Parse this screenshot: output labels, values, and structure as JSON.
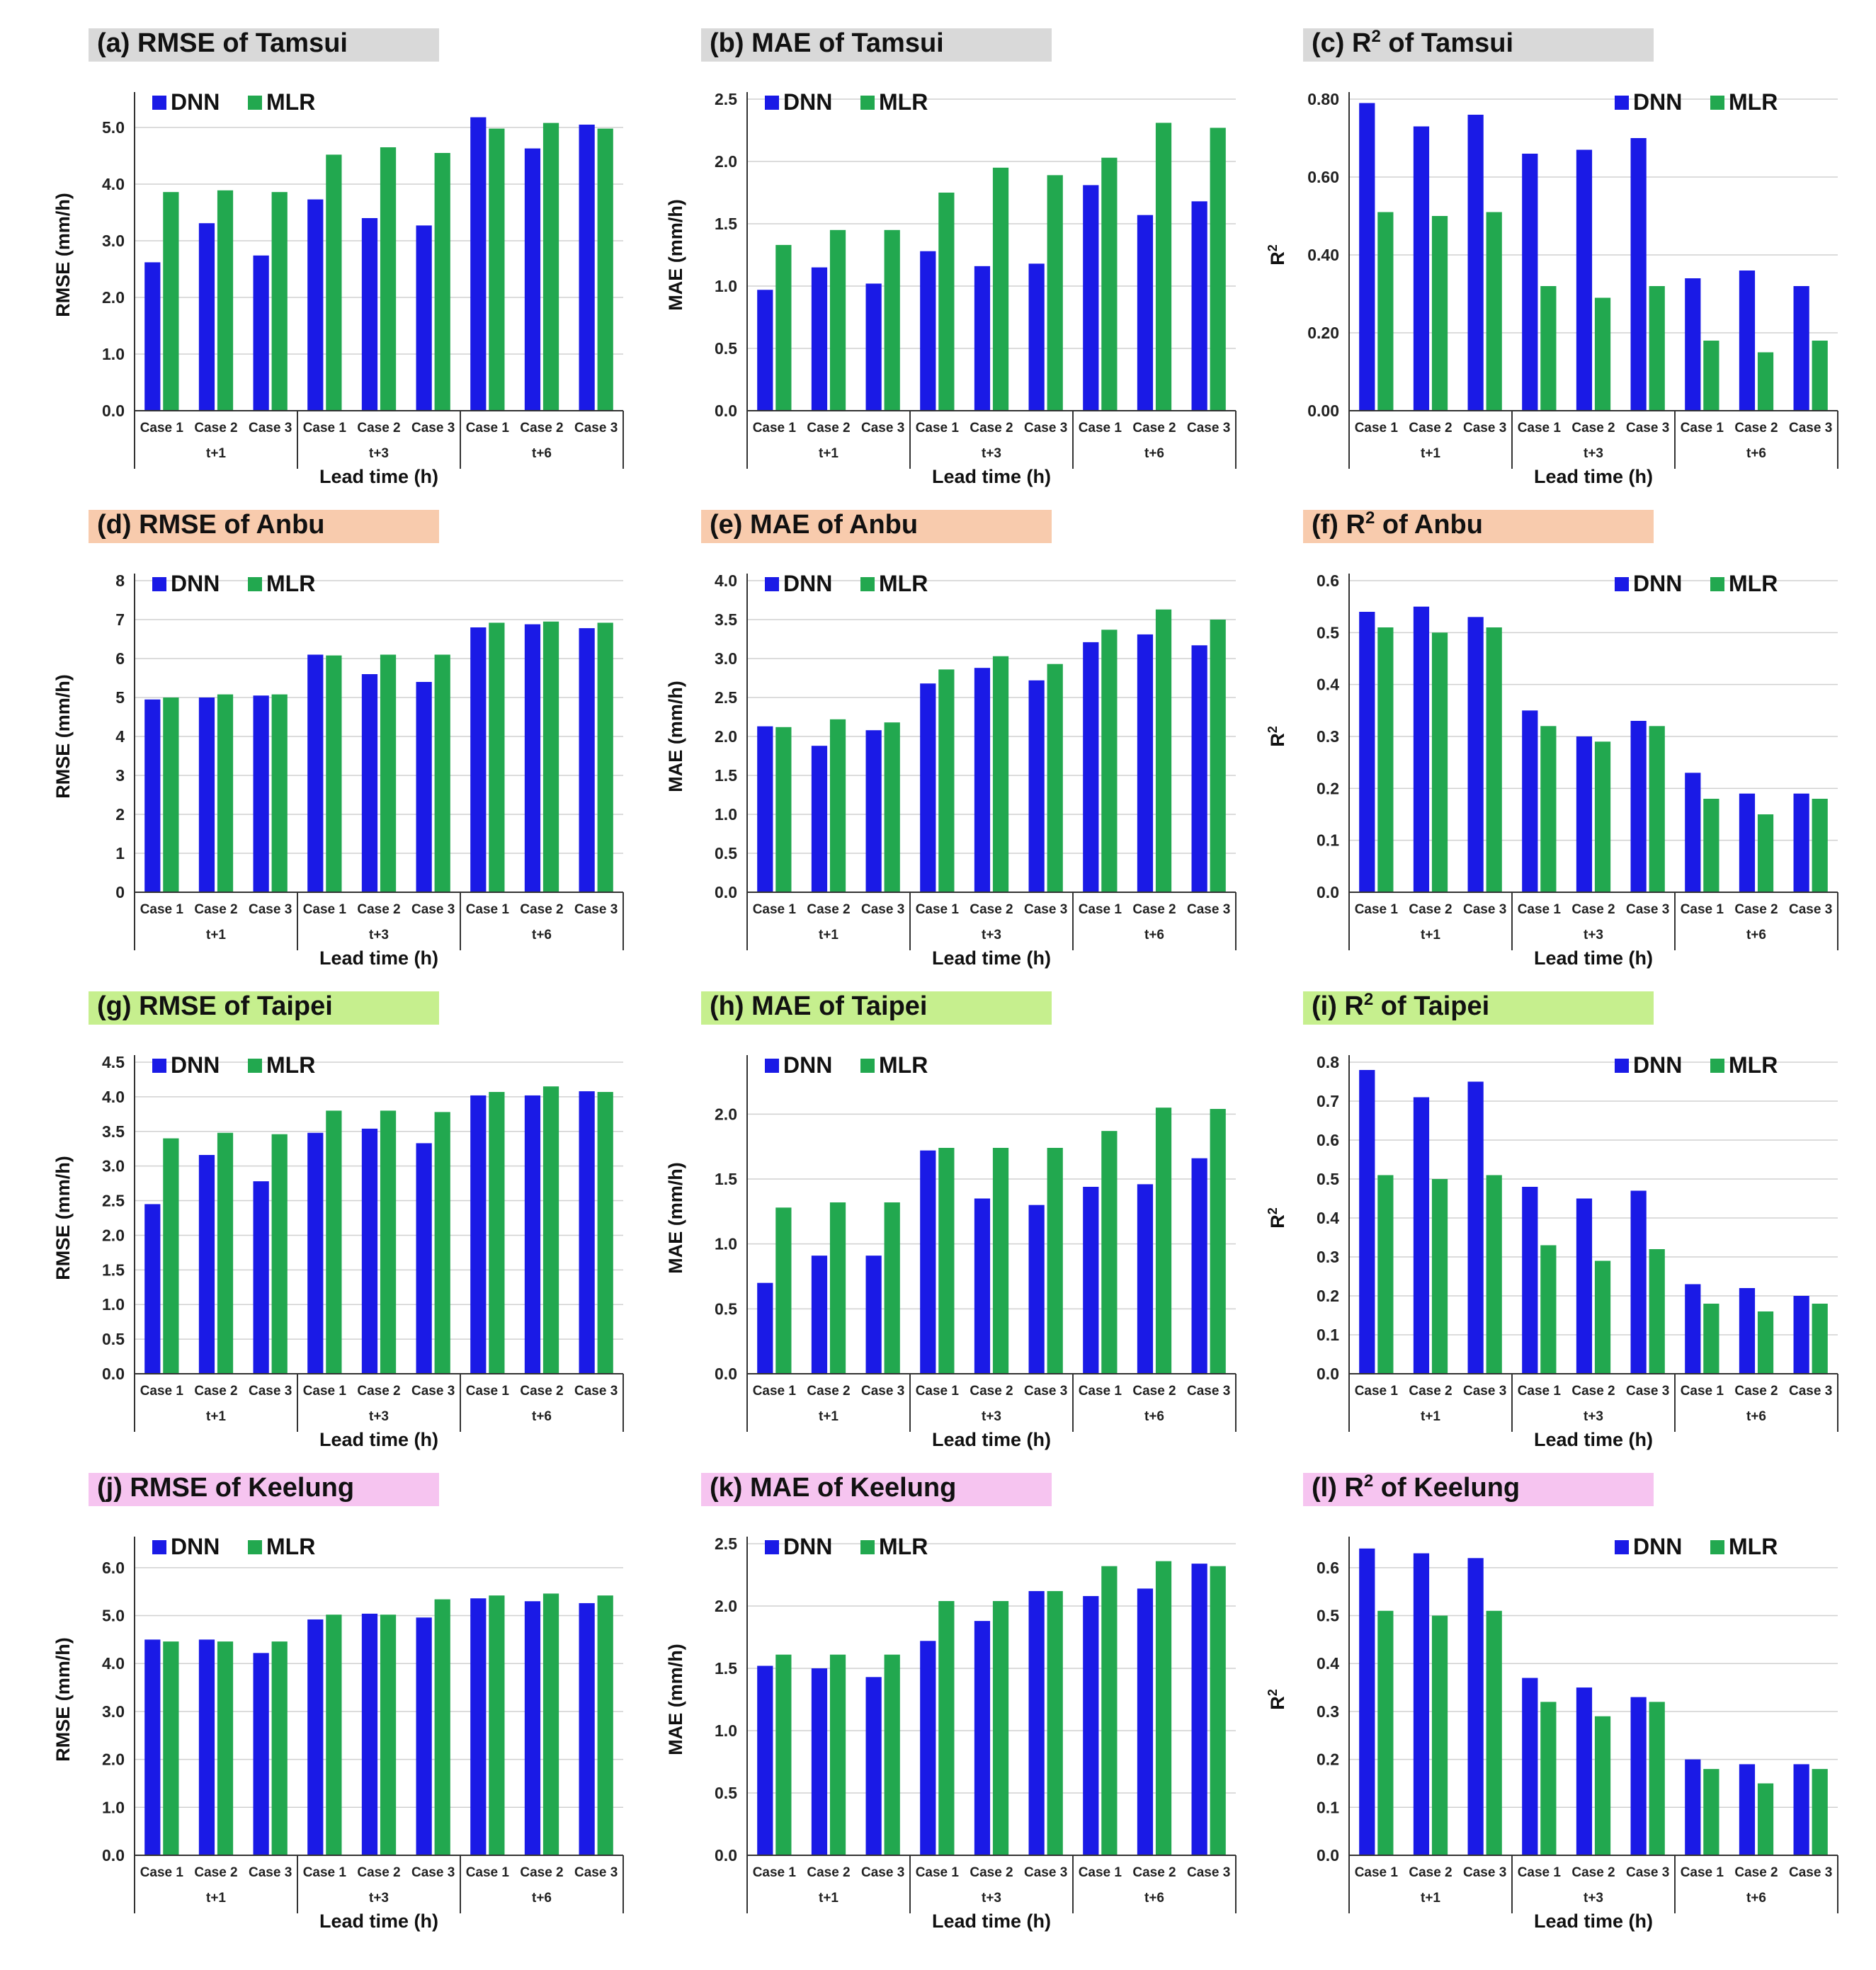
{
  "colors": {
    "dnn": "#1a1ae6",
    "mlr": "#22a84f",
    "tamsui_bg": "#d9d9d9",
    "anbu_bg": "#f8cbad",
    "taipei_bg": "#c6ef8e",
    "keelung_bg": "#f6c4f0",
    "grid": "#d0d0d0",
    "axis": "#333333"
  },
  "chart_data": [
    {
      "id": "a",
      "type": "bar",
      "station": "tamsui",
      "title": "(a) RMSE of Tamsui",
      "ylabel": "RMSE (mm/h)",
      "xlabel": "Lead time (h)",
      "ylim": [
        0,
        5.5
      ],
      "yticks": [
        "0.0",
        "1.0",
        "2.0",
        "3.0",
        "4.0",
        "5.0"
      ],
      "ytick_values": [
        0,
        1,
        2,
        3,
        4,
        5
      ],
      "categories": [
        "Case 1",
        "Case 2",
        "Case 3",
        "Case 1",
        "Case 2",
        "Case 3",
        "Case 1",
        "Case 2",
        "Case 3"
      ],
      "groups": [
        "t+1",
        "t+3",
        "t+6"
      ],
      "legend": "top-left",
      "series": [
        {
          "name": "DNN",
          "values": [
            2.62,
            3.31,
            2.74,
            3.73,
            3.4,
            3.27,
            5.18,
            4.63,
            5.05
          ]
        },
        {
          "name": "MLR",
          "values": [
            3.86,
            3.89,
            3.86,
            4.52,
            4.65,
            4.55,
            4.98,
            5.08,
            4.98
          ]
        }
      ]
    },
    {
      "id": "b",
      "type": "bar",
      "station": "tamsui",
      "title": "(b) MAE of Tamsui",
      "ylabel": "MAE (mm/h)",
      "xlabel": "Lead time (h)",
      "ylim": [
        0,
        2.5
      ],
      "yticks": [
        "0.0",
        "0.5",
        "1.0",
        "1.5",
        "2.0",
        "2.5"
      ],
      "ytick_values": [
        0,
        0.5,
        1,
        1.5,
        2,
        2.5
      ],
      "categories": [
        "Case 1",
        "Case 2",
        "Case 3",
        "Case 1",
        "Case 2",
        "Case 3",
        "Case 1",
        "Case 2",
        "Case 3"
      ],
      "groups": [
        "t+1",
        "t+3",
        "t+6"
      ],
      "legend": "top-left",
      "series": [
        {
          "name": "DNN",
          "values": [
            0.97,
            1.15,
            1.02,
            1.28,
            1.16,
            1.18,
            1.81,
            1.57,
            1.68
          ]
        },
        {
          "name": "MLR",
          "values": [
            1.33,
            1.45,
            1.45,
            1.75,
            1.95,
            1.89,
            2.03,
            2.31,
            2.27
          ]
        }
      ]
    },
    {
      "id": "c",
      "type": "bar",
      "station": "tamsui",
      "title": "(c) R",
      "title_sup": "2",
      "title_rest": " of Tamsui",
      "ylabel": "R",
      "ylabel_sup": "2",
      "xlabel": "Lead time (h)",
      "ylim": [
        0,
        0.8
      ],
      "yticks": [
        "0.00",
        "0.20",
        "0.40",
        "0.60",
        "0.80"
      ],
      "ytick_values": [
        0,
        0.2,
        0.4,
        0.6,
        0.8
      ],
      "categories": [
        "Case 1",
        "Case 2",
        "Case 3",
        "Case 1",
        "Case 2",
        "Case 3",
        "Case 1",
        "Case 2",
        "Case 3"
      ],
      "groups": [
        "t+1",
        "t+3",
        "t+6"
      ],
      "legend": "top-right",
      "series": [
        {
          "name": "DNN",
          "values": [
            0.79,
            0.73,
            0.76,
            0.66,
            0.67,
            0.7,
            0.34,
            0.36,
            0.32
          ]
        },
        {
          "name": "MLR",
          "values": [
            0.51,
            0.5,
            0.51,
            0.32,
            0.29,
            0.32,
            0.18,
            0.15,
            0.18
          ]
        }
      ]
    },
    {
      "id": "d",
      "type": "bar",
      "station": "anbu",
      "title": "(d) RMSE of Anbu",
      "ylabel": "RMSE (mm/h)",
      "xlabel": "Lead time (h)",
      "ylim": [
        0,
        8
      ],
      "yticks": [
        "0",
        "1",
        "2",
        "3",
        "4",
        "5",
        "6",
        "7",
        "8"
      ],
      "ytick_values": [
        0,
        1,
        2,
        3,
        4,
        5,
        6,
        7,
        8
      ],
      "categories": [
        "Case 1",
        "Case 2",
        "Case 3",
        "Case 1",
        "Case 2",
        "Case 3",
        "Case 1",
        "Case 2",
        "Case 3"
      ],
      "groups": [
        "t+1",
        "t+3",
        "t+6"
      ],
      "legend": "top-left",
      "series": [
        {
          "name": "DNN",
          "values": [
            4.95,
            5.0,
            5.05,
            6.1,
            5.6,
            5.4,
            6.8,
            6.88,
            6.78
          ]
        },
        {
          "name": "MLR",
          "values": [
            5.0,
            5.08,
            5.08,
            6.08,
            6.1,
            6.1,
            6.92,
            6.95,
            6.92
          ]
        }
      ]
    },
    {
      "id": "e",
      "type": "bar",
      "station": "anbu",
      "title": "(e) MAE of Anbu",
      "ylabel": "MAE (mm/h)",
      "xlabel": "Lead time (h)",
      "ylim": [
        0,
        4
      ],
      "yticks": [
        "0.0",
        "0.5",
        "1.0",
        "1.5",
        "2.0",
        "2.5",
        "3.0",
        "3.5",
        "4.0"
      ],
      "ytick_values": [
        0,
        0.5,
        1,
        1.5,
        2,
        2.5,
        3,
        3.5,
        4
      ],
      "categories": [
        "Case 1",
        "Case 2",
        "Case 3",
        "Case 1",
        "Case 2",
        "Case 3",
        "Case 1",
        "Case 2",
        "Case 3"
      ],
      "groups": [
        "t+1",
        "t+3",
        "t+6"
      ],
      "legend": "top-left",
      "series": [
        {
          "name": "DNN",
          "values": [
            2.13,
            1.88,
            2.08,
            2.68,
            2.88,
            2.72,
            3.21,
            3.31,
            3.17
          ]
        },
        {
          "name": "MLR",
          "values": [
            2.12,
            2.22,
            2.18,
            2.86,
            3.03,
            2.93,
            3.37,
            3.63,
            3.5
          ]
        }
      ]
    },
    {
      "id": "f",
      "type": "bar",
      "station": "anbu",
      "title": "(f) R",
      "title_sup": "2",
      "title_rest": " of Anbu",
      "ylabel": "R",
      "ylabel_sup": "2",
      "xlabel": "Lead time (h)",
      "ylim": [
        0,
        0.6
      ],
      "yticks": [
        "0.0",
        "0.1",
        "0.2",
        "0.3",
        "0.4",
        "0.5",
        "0.6"
      ],
      "ytick_values": [
        0,
        0.1,
        0.2,
        0.3,
        0.4,
        0.5,
        0.6
      ],
      "categories": [
        "Case 1",
        "Case 2",
        "Case 3",
        "Case 1",
        "Case 2",
        "Case 3",
        "Case 1",
        "Case 2",
        "Case 3"
      ],
      "groups": [
        "t+1",
        "t+3",
        "t+6"
      ],
      "legend": "top-right",
      "series": [
        {
          "name": "DNN",
          "values": [
            0.54,
            0.55,
            0.53,
            0.35,
            0.3,
            0.33,
            0.23,
            0.19,
            0.19
          ]
        },
        {
          "name": "MLR",
          "values": [
            0.51,
            0.5,
            0.51,
            0.32,
            0.29,
            0.32,
            0.18,
            0.15,
            0.18
          ]
        }
      ]
    },
    {
      "id": "g",
      "type": "bar",
      "station": "taipei",
      "title": "(g) RMSE of Taipei",
      "ylabel": "RMSE (mm/h)",
      "xlabel": "Lead time (h)",
      "ylim": [
        0,
        4.5
      ],
      "yticks": [
        "0.0",
        "0.5",
        "1.0",
        "1.5",
        "2.0",
        "2.5",
        "3.0",
        "3.5",
        "4.0",
        "4.5"
      ],
      "ytick_values": [
        0,
        0.5,
        1,
        1.5,
        2,
        2.5,
        3,
        3.5,
        4,
        4.5
      ],
      "categories": [
        "Case 1",
        "Case 2",
        "Case 3",
        "Case 1",
        "Case 2",
        "Case 3",
        "Case 1",
        "Case 2",
        "Case 3"
      ],
      "groups": [
        "t+1",
        "t+3",
        "t+6"
      ],
      "legend": "top-left",
      "series": [
        {
          "name": "DNN",
          "values": [
            2.45,
            3.16,
            2.78,
            3.48,
            3.54,
            3.33,
            4.02,
            4.02,
            4.08
          ]
        },
        {
          "name": "MLR",
          "values": [
            3.4,
            3.48,
            3.46,
            3.8,
            3.8,
            3.78,
            4.07,
            4.15,
            4.07
          ]
        }
      ]
    },
    {
      "id": "h",
      "type": "bar",
      "station": "taipei",
      "title": "(h) MAE of Taipei",
      "ylabel": "MAE (mm/h)",
      "xlabel": "Lead time (h)",
      "ylim": [
        0,
        2.4
      ],
      "yticks": [
        "0.0",
        "0.5",
        "1.0",
        "1.5",
        "2.0"
      ],
      "ytick_values": [
        0,
        0.5,
        1,
        1.5,
        2
      ],
      "categories": [
        "Case 1",
        "Case 2",
        "Case 3",
        "Case 1",
        "Case 2",
        "Case 3",
        "Case 1",
        "Case 2",
        "Case 3"
      ],
      "groups": [
        "t+1",
        "t+3",
        "t+6"
      ],
      "legend": "top-left",
      "series": [
        {
          "name": "DNN",
          "values": [
            0.7,
            0.91,
            0.91,
            1.72,
            1.35,
            1.3,
            1.44,
            1.46,
            1.66
          ]
        },
        {
          "name": "MLR",
          "values": [
            1.28,
            1.32,
            1.32,
            1.74,
            1.74,
            1.74,
            1.87,
            2.05,
            2.04
          ]
        }
      ]
    },
    {
      "id": "i",
      "type": "bar",
      "station": "taipei",
      "title": "(i) R",
      "title_sup": "2",
      "title_rest": " of Taipei",
      "ylabel": "R",
      "ylabel_sup": "2",
      "xlabel": "Lead time (h)",
      "ylim": [
        0,
        0.8
      ],
      "yticks": [
        "0.0",
        "0.1",
        "0.2",
        "0.3",
        "0.4",
        "0.5",
        "0.6",
        "0.7",
        "0.8"
      ],
      "ytick_values": [
        0,
        0.1,
        0.2,
        0.3,
        0.4,
        0.5,
        0.6,
        0.7,
        0.8
      ],
      "categories": [
        "Case 1",
        "Case 2",
        "Case 3",
        "Case 1",
        "Case 2",
        "Case 3",
        "Case 1",
        "Case 2",
        "Case 3"
      ],
      "groups": [
        "t+1",
        "t+3",
        "t+6"
      ],
      "legend": "top-right",
      "series": [
        {
          "name": "DNN",
          "values": [
            0.78,
            0.71,
            0.75,
            0.48,
            0.45,
            0.47,
            0.23,
            0.22,
            0.2
          ]
        },
        {
          "name": "MLR",
          "values": [
            0.51,
            0.5,
            0.51,
            0.33,
            0.29,
            0.32,
            0.18,
            0.16,
            0.18
          ]
        }
      ]
    },
    {
      "id": "j",
      "type": "bar",
      "station": "keelung",
      "title": "(j) RMSE of Keelung",
      "ylabel": "RMSE (mm/h)",
      "xlabel": "Lead time (h)",
      "ylim": [
        0,
        6.5
      ],
      "yticks": [
        "0.0",
        "1.0",
        "2.0",
        "3.0",
        "4.0",
        "5.0",
        "6.0"
      ],
      "ytick_values": [
        0,
        1,
        2,
        3,
        4,
        5,
        6
      ],
      "categories": [
        "Case 1",
        "Case 2",
        "Case 3",
        "Case 1",
        "Case 2",
        "Case 3",
        "Case 1",
        "Case 2",
        "Case 3"
      ],
      "groups": [
        "t+1",
        "t+3",
        "t+6"
      ],
      "legend": "top-left",
      "series": [
        {
          "name": "DNN",
          "values": [
            4.5,
            4.5,
            4.22,
            4.92,
            5.04,
            4.96,
            5.36,
            5.3,
            5.26
          ]
        },
        {
          "name": "MLR",
          "values": [
            4.46,
            4.46,
            4.46,
            5.02,
            5.02,
            5.34,
            5.42,
            5.46,
            5.42
          ]
        }
      ]
    },
    {
      "id": "k",
      "type": "bar",
      "station": "keelung",
      "title": "(k) MAE of Keelung",
      "ylabel": "MAE (mm/h)",
      "xlabel": "Lead time (h)",
      "ylim": [
        0,
        2.5
      ],
      "yticks": [
        "0.0",
        "0.5",
        "1.0",
        "1.5",
        "2.0",
        "2.5"
      ],
      "ytick_values": [
        0,
        0.5,
        1,
        1.5,
        2,
        2.5
      ],
      "categories": [
        "Case 1",
        "Case 2",
        "Case 3",
        "Case 1",
        "Case 2",
        "Case 3",
        "Case 1",
        "Case 2",
        "Case 3"
      ],
      "groups": [
        "t+1",
        "t+3",
        "t+6"
      ],
      "legend": "top-left",
      "series": [
        {
          "name": "DNN",
          "values": [
            1.52,
            1.5,
            1.43,
            1.72,
            1.88,
            2.12,
            2.08,
            2.14,
            2.34
          ]
        },
        {
          "name": "MLR",
          "values": [
            1.61,
            1.61,
            1.61,
            2.04,
            2.04,
            2.12,
            2.32,
            2.36,
            2.32
          ]
        }
      ]
    },
    {
      "id": "l",
      "type": "bar",
      "station": "keelung",
      "title": "(l) R",
      "title_sup": "2",
      "title_rest": " of Keelung",
      "ylabel": "R",
      "ylabel_sup": "2",
      "xlabel": "Lead time (h)",
      "ylim": [
        0,
        0.65
      ],
      "yticks": [
        "0.0",
        "0.1",
        "0.2",
        "0.3",
        "0.4",
        "0.5",
        "0.6"
      ],
      "ytick_values": [
        0,
        0.1,
        0.2,
        0.3,
        0.4,
        0.5,
        0.6
      ],
      "categories": [
        "Case 1",
        "Case 2",
        "Case 3",
        "Case 1",
        "Case 2",
        "Case 3",
        "Case 1",
        "Case 2",
        "Case 3"
      ],
      "groups": [
        "t+1",
        "t+3",
        "t+6"
      ],
      "legend": "top-right",
      "series": [
        {
          "name": "DNN",
          "values": [
            0.64,
            0.63,
            0.62,
            0.37,
            0.35,
            0.33,
            0.2,
            0.19,
            0.19
          ]
        },
        {
          "name": "MLR",
          "values": [
            0.51,
            0.5,
            0.51,
            0.32,
            0.29,
            0.32,
            0.18,
            0.15,
            0.18
          ]
        }
      ]
    }
  ]
}
